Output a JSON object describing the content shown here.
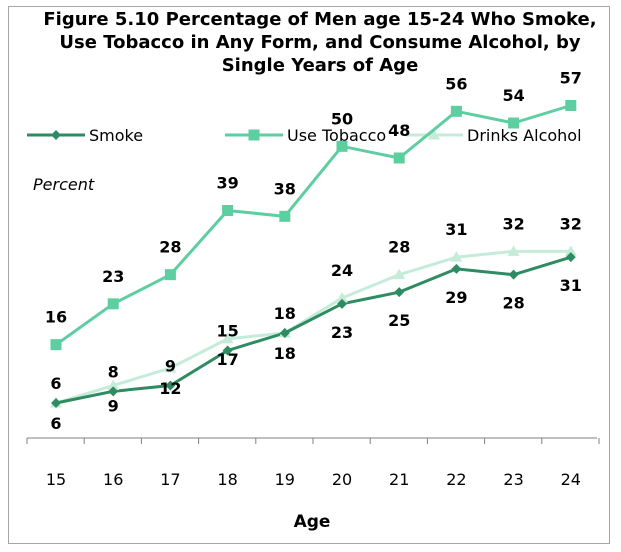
{
  "chart_data": {
    "type": "line",
    "title": "Figure 5.10 Percentage of Men age 15-24 Who Smoke, Use Tobacco in Any Form, and Consume Alcohol, by Single Years of Age",
    "ylabel": "Percent",
    "xlabel": "Age",
    "x": [
      "15",
      "16",
      "17",
      "18",
      "19",
      "20",
      "21",
      "22",
      "23",
      "24"
    ],
    "ylim": [
      0,
      60
    ],
    "legend": "top",
    "grid": false,
    "series": [
      {
        "name": "Smoke",
        "values": [
          6,
          8,
          9,
          15,
          18,
          23,
          25,
          29,
          28,
          31
        ],
        "color": "#2e8b62",
        "marker": "diamond"
      },
      {
        "name": "Use Tobacco",
        "values": [
          16,
          23,
          28,
          39,
          38,
          50,
          48,
          56,
          54,
          57
        ],
        "color": "#5dcea0",
        "marker": "square"
      },
      {
        "name": "Drinks Alcohol",
        "values": [
          6,
          9,
          12,
          17,
          18,
          24,
          28,
          31,
          32,
          32
        ],
        "color": "#c5ecd8",
        "marker": "triangle"
      }
    ]
  }
}
